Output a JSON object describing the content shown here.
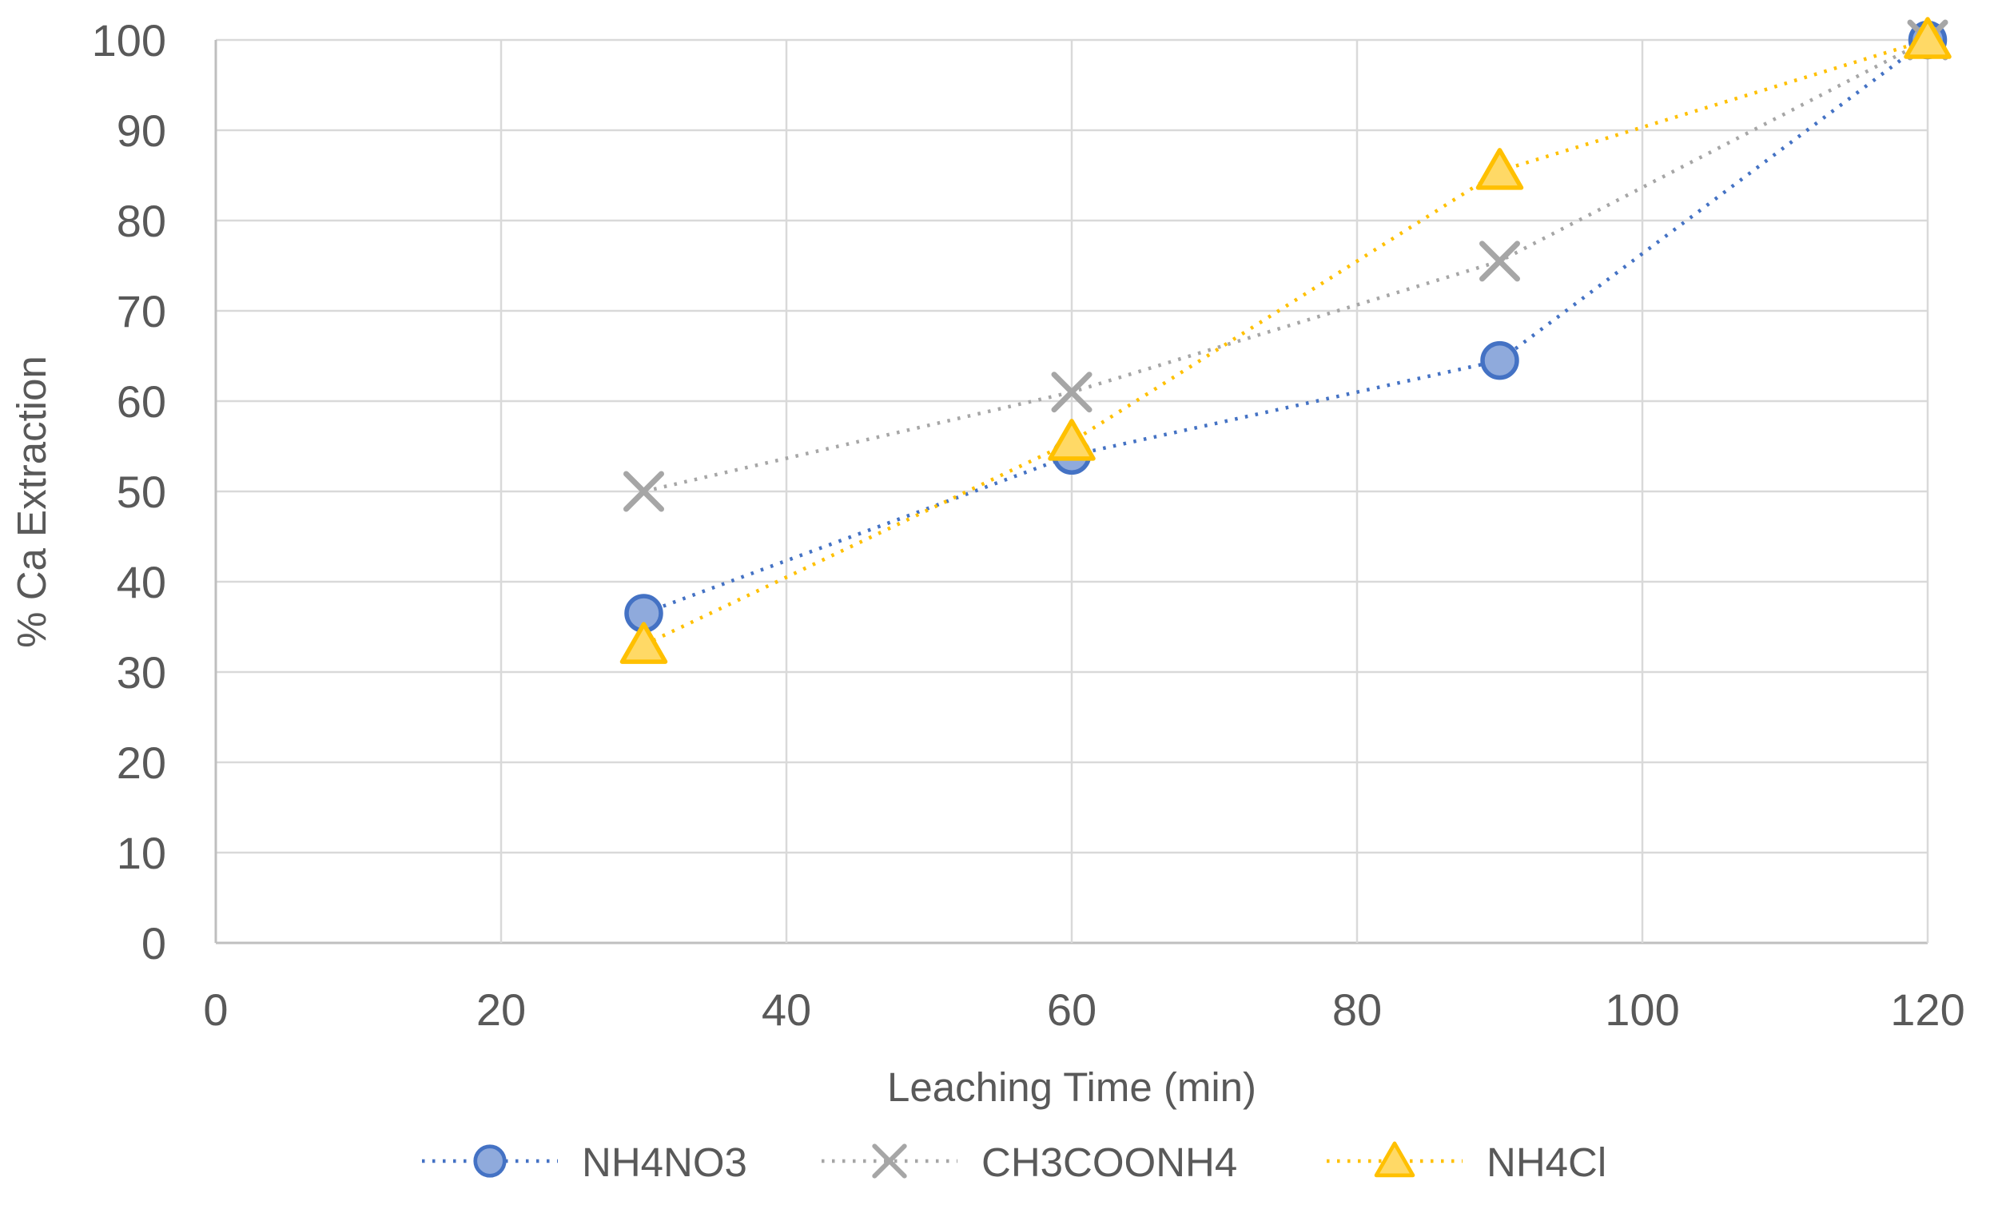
{
  "figure": {
    "background": "#FFFFFF",
    "text_color": "#595959",
    "grid_color": "#D9D9D9",
    "axis_line_color": "#BFBFBF"
  },
  "chart_data": {
    "type": "line",
    "title": "",
    "xlabel": "Leaching Time (min)",
    "ylabel": "% Ca Extraction",
    "x": [
      30,
      60,
      90,
      120
    ],
    "xlim": [
      0,
      120
    ],
    "ylim": [
      0,
      100
    ],
    "xticks": [
      0,
      20,
      40,
      60,
      80,
      100,
      120
    ],
    "yticks": [
      0,
      10,
      20,
      30,
      40,
      50,
      60,
      70,
      80,
      90,
      100
    ],
    "grid": true,
    "line_style": "dotted",
    "legend_position": "bottom",
    "series": [
      {
        "name": "NH4NO3",
        "marker": "circle",
        "color": "#4472C4",
        "fill": "#8FAADC",
        "values": [
          36.5,
          54,
          64.5,
          100
        ]
      },
      {
        "name": "CH3COONH4",
        "marker": "x",
        "color": "#A6A6A6",
        "fill": "none",
        "values": [
          50,
          61,
          75.5,
          100
        ]
      },
      {
        "name": "NH4Cl",
        "marker": "triangle",
        "color": "#FFC000",
        "fill": "#FFD966",
        "values": [
          33,
          55.5,
          85.5,
          100
        ]
      }
    ]
  }
}
